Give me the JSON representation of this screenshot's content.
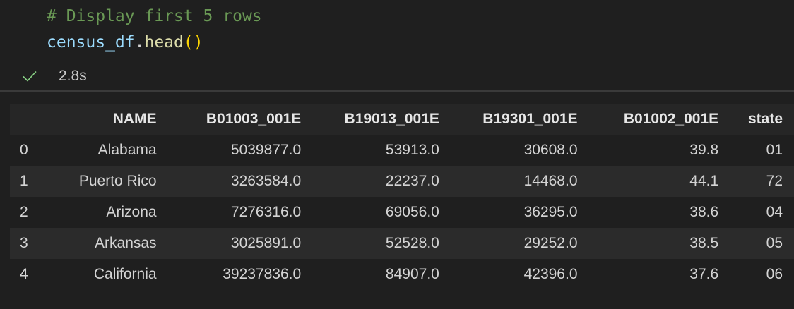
{
  "cell": {
    "comment_line": "# Display first 5 rows",
    "code": {
      "variable": "census_df",
      "dot": ".",
      "method": "head",
      "parens": "()"
    },
    "status": {
      "icon": "check-icon",
      "time": "2.8s",
      "color": "#89d185"
    }
  },
  "table": {
    "columns": [
      "",
      "NAME",
      "B01003_001E",
      "B19013_001E",
      "B19301_001E",
      "B01002_001E",
      "state"
    ],
    "rows": [
      [
        "0",
        "Alabama",
        "5039877.0",
        "53913.0",
        "30608.0",
        "39.8",
        "01"
      ],
      [
        "1",
        "Puerto Rico",
        "3263584.0",
        "22237.0",
        "14468.0",
        "44.1",
        "72"
      ],
      [
        "2",
        "Arizona",
        "7276316.0",
        "69056.0",
        "36295.0",
        "38.6",
        "04"
      ],
      [
        "3",
        "Arkansas",
        "3025891.0",
        "52528.0",
        "29252.0",
        "38.5",
        "05"
      ],
      [
        "4",
        "California",
        "39237836.0",
        "84907.0",
        "42396.0",
        "37.6",
        "06"
      ]
    ]
  }
}
